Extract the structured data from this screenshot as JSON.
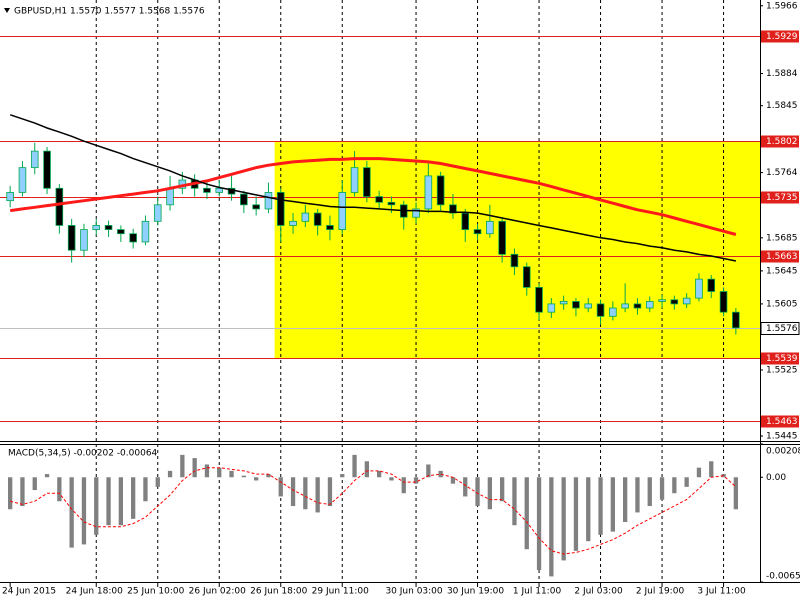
{
  "chart_data": [
    {
      "type": "candlestick",
      "title": "GBPUSD,H1  1.5570 1.5577 1.5568 1.5576",
      "categories": [
        "24 Jun 2015",
        null,
        null,
        null,
        null,
        null,
        null,
        "24 Jun 18:00",
        null,
        null,
        null,
        null,
        "25 Jun 10:00",
        null,
        null,
        null,
        null,
        "26 Jun 02:00",
        null,
        null,
        null,
        null,
        "26 Jun 18:00",
        null,
        null,
        null,
        null,
        "29 Jun 11:00",
        null,
        null,
        null,
        null,
        null,
        "30 Jun 03:00",
        null,
        null,
        null,
        null,
        "30 Jun 19:00",
        null,
        null,
        null,
        null,
        "1 Jul 11:00",
        null,
        null,
        null,
        null,
        "2 Jul 03:00",
        null,
        null,
        null,
        null,
        "2 Jul 19:00",
        null,
        null,
        null,
        null,
        "3 Jul 11:00",
        null
      ],
      "open": [
        1.573,
        1.574,
        1.577,
        1.579,
        1.5745,
        1.57,
        1.567,
        1.5695,
        1.57,
        1.5695,
        1.569,
        1.568,
        1.5705,
        1.5725,
        1.5745,
        1.5755,
        1.5745,
        1.574,
        1.5745,
        1.5738,
        1.5725,
        1.572,
        1.574,
        1.57,
        1.5705,
        1.5715,
        1.57,
        1.5695,
        1.574,
        1.577,
        1.5735,
        1.5728,
        1.5725,
        1.571,
        1.572,
        1.576,
        1.5725,
        1.5715,
        1.5695,
        1.569,
        1.5705,
        1.5665,
        1.565,
        1.5625,
        1.5595,
        1.5605,
        1.5608,
        1.56,
        1.5605,
        1.559,
        1.56,
        1.5605,
        1.56,
        1.5608,
        1.561,
        1.5605,
        1.5612,
        1.5635,
        1.562,
        1.5595
      ],
      "high": [
        1.5748,
        1.5778,
        1.58,
        1.5795,
        1.575,
        1.5708,
        1.5702,
        1.5708,
        1.5706,
        1.57,
        1.5696,
        1.5712,
        1.5735,
        1.576,
        1.5765,
        1.5762,
        1.5752,
        1.5755,
        1.576,
        1.5742,
        1.5735,
        1.5752,
        1.5745,
        1.5715,
        1.5725,
        1.572,
        1.5712,
        1.5755,
        1.579,
        1.5778,
        1.5742,
        1.5735,
        1.573,
        1.5728,
        1.5775,
        1.5765,
        1.5738,
        1.572,
        1.5702,
        1.5725,
        1.571,
        1.5672,
        1.5655,
        1.563,
        1.5612,
        1.5615,
        1.5612,
        1.5612,
        1.561,
        1.5608,
        1.563,
        1.5612,
        1.5614,
        1.5616,
        1.5615,
        1.5618,
        1.5642,
        1.564,
        1.5625,
        1.56
      ],
      "low": [
        1.5722,
        1.5735,
        1.5762,
        1.5738,
        1.569,
        1.5655,
        1.5662,
        1.5688,
        1.5686,
        1.568,
        1.5672,
        1.5676,
        1.57,
        1.5718,
        1.5738,
        1.5735,
        1.5732,
        1.5735,
        1.573,
        1.5715,
        1.5712,
        1.5715,
        1.568,
        1.569,
        1.5698,
        1.5688,
        1.5682,
        1.569,
        1.5735,
        1.5728,
        1.572,
        1.5715,
        1.5695,
        1.5702,
        1.5715,
        1.5718,
        1.5708,
        1.568,
        1.5682,
        1.5685,
        1.5655,
        1.564,
        1.5615,
        1.5585,
        1.5588,
        1.5598,
        1.559,
        1.5595,
        1.558,
        1.5585,
        1.5595,
        1.5592,
        1.5595,
        1.56,
        1.5598,
        1.56,
        1.5608,
        1.5612,
        1.559,
        1.5568
      ],
      "close": [
        1.574,
        1.577,
        1.579,
        1.5745,
        1.57,
        1.567,
        1.5695,
        1.57,
        1.5695,
        1.569,
        1.568,
        1.5705,
        1.5725,
        1.5745,
        1.5755,
        1.5745,
        1.574,
        1.5745,
        1.5738,
        1.5725,
        1.572,
        1.574,
        1.57,
        1.5705,
        1.5715,
        1.57,
        1.5695,
        1.574,
        1.577,
        1.5735,
        1.5728,
        1.5725,
        1.571,
        1.572,
        1.576,
        1.5725,
        1.5715,
        1.5695,
        1.569,
        1.5705,
        1.5665,
        1.565,
        1.5625,
        1.5595,
        1.5605,
        1.5608,
        1.56,
        1.5605,
        1.559,
        1.56,
        1.5605,
        1.56,
        1.5608,
        1.561,
        1.5605,
        1.5612,
        1.5635,
        1.562,
        1.5595,
        1.5576
      ],
      "up_color": "#8fd0ff",
      "down_color": "#000000",
      "wick_color": "#00a84f",
      "overlays": [
        {
          "color": "#ff1a1a",
          "width": 3,
          "values": [
            1.5718,
            1.572,
            1.5722,
            1.5724,
            1.5726,
            1.5728,
            1.573,
            1.5732,
            1.5734,
            1.5736,
            1.5738,
            1.574,
            1.5742,
            1.5745,
            1.5748,
            1.5751,
            1.5754,
            1.5758,
            1.5762,
            1.5766,
            1.577,
            1.5773,
            1.5775,
            1.5777,
            1.5778,
            1.5779,
            1.578,
            1.578,
            1.5781,
            1.5781,
            1.5781,
            1.578,
            1.5779,
            1.5778,
            1.5777,
            1.5775,
            1.5772,
            1.5769,
            1.5766,
            1.5763,
            1.576,
            1.5757,
            1.5754,
            1.5751,
            1.5747,
            1.5743,
            1.5739,
            1.5735,
            1.5731,
            1.5727,
            1.5723,
            1.5719,
            1.5716,
            1.5713,
            1.5709,
            1.5705,
            1.5701,
            1.5697,
            1.5693,
            1.5689
          ]
        },
        {
          "color": "#000000",
          "width": 1.5,
          "values": [
            1.5834,
            1.5829,
            1.5824,
            1.5818,
            1.5813,
            1.5808,
            1.5802,
            1.5797,
            1.5792,
            1.5787,
            1.5781,
            1.5776,
            1.5771,
            1.5766,
            1.576,
            1.5755,
            1.575,
            1.5746,
            1.5743,
            1.574,
            1.5737,
            1.5734,
            1.5731,
            1.5729,
            1.5727,
            1.5725,
            1.5723,
            1.5722,
            1.5722,
            1.5721,
            1.572,
            1.5719,
            1.5718,
            1.5718,
            1.5717,
            1.5717,
            1.5716,
            1.5716,
            1.5715,
            1.5712,
            1.5709,
            1.5706,
            1.5703,
            1.57,
            1.5697,
            1.5694,
            1.5691,
            1.5688,
            1.5685,
            1.5683,
            1.568,
            1.5678,
            1.5675,
            1.5673,
            1.567,
            1.5668,
            1.5665,
            1.5663,
            1.566,
            1.5657
          ]
        }
      ],
      "levels": {
        "color": "#e0201b",
        "values": [
          1.5929,
          1.5802,
          1.5735,
          1.5663,
          1.5539,
          1.5463
        ]
      },
      "current_price": {
        "color": "#c0c0c0",
        "value": 1.5576
      },
      "zone": {
        "from": "26 Jun 18:00",
        "low": 1.5539,
        "high": 1.5802,
        "color": "#ffff00"
      },
      "ylim": [
        1.5439,
        1.5973
      ],
      "yticks": [
        1.5966,
        1.5884,
        1.5845,
        1.5764,
        1.5685,
        1.5645,
        1.5605,
        1.5525,
        1.5445
      ],
      "grid": true
    },
    {
      "type": "macd",
      "title": "MACD(5,34,5) -0.00202 -0.00064",
      "color": "#808080",
      "values": [
        -0.002,
        -0.0018,
        -0.0008,
        0.0002,
        -0.0015,
        -0.0044,
        -0.0042,
        -0.0036,
        -0.003,
        -0.003,
        -0.0026,
        -0.0015,
        -0.0006,
        0.0004,
        0.0014,
        0.0012,
        0.0008,
        0.0006,
        0.0004,
        0.0001,
        -0.0002,
        0.0002,
        -0.0012,
        -0.0018,
        -0.002,
        -0.0022,
        -0.0018,
        0.0002,
        0.0014,
        0.001,
        0.0004,
        -0.0002,
        -0.001,
        -0.0004,
        0.0008,
        0.0004,
        -0.0004,
        -0.0012,
        -0.0018,
        -0.002,
        -0.0015,
        -0.003,
        -0.0045,
        -0.0058,
        -0.0062,
        -0.0052,
        -0.0046,
        -0.004,
        -0.0036,
        -0.0034,
        -0.0028,
        -0.0022,
        -0.0018,
        -0.0014,
        -0.001,
        -0.0006,
        0.0006,
        0.001,
        0.0002,
        -0.002
      ],
      "signal": {
        "color": "#ff0000",
        "values": [
          -0.0015,
          -0.0017,
          -0.0015,
          -0.001,
          -0.001,
          -0.002,
          -0.0028,
          -0.0031,
          -0.0031,
          -0.0031,
          -0.0029,
          -0.0025,
          -0.0018,
          -0.0011,
          -0.0002,
          0.0004,
          0.0006,
          0.0006,
          0.0005,
          0.0004,
          0.0002,
          0.0002,
          -0.0003,
          -0.0008,
          -0.0012,
          -0.0016,
          -0.0017,
          -0.001,
          -0.0002,
          0.0004,
          0.0004,
          0.0002,
          -0.0003,
          -0.0003,
          0.0001,
          0.0002,
          0.0,
          -0.0005,
          -0.001,
          -0.0014,
          -0.0014,
          -0.002,
          -0.0028,
          -0.0038,
          -0.0046,
          -0.0048,
          -0.0047,
          -0.0045,
          -0.0042,
          -0.0039,
          -0.0035,
          -0.003,
          -0.0026,
          -0.0022,
          -0.0018,
          -0.0014,
          -0.0007,
          0.0,
          0.0001,
          -0.0006
        ]
      },
      "ylim": [
        -0.00655,
        0.00208
      ],
      "yticks": [
        0.00208,
        {
          "value": 0,
          "label": "0.00"
        },
        -0.00655
      ]
    }
  ]
}
